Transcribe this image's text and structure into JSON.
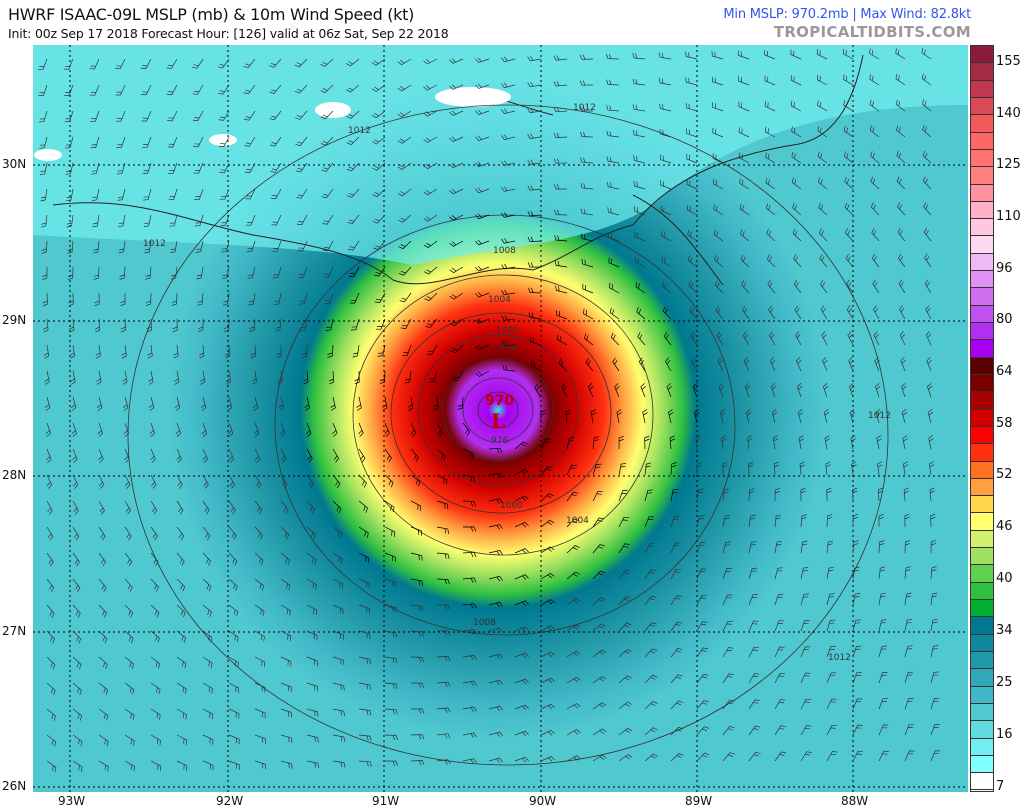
{
  "header": {
    "title": "HWRF ISAAC-09L MSLP (mb) & 10m Wind Speed (kt)",
    "subtitle": "Init: 00z Sep 17 2018   Forecast Hour: [126]   valid at 06z Sat, Sep 22 2018",
    "stats": "Min MSLP: 970.2mb | Max Wind: 82.8kt",
    "brand": "TROPICALTIDBITS.COM"
  },
  "map": {
    "lon_labels": [
      "93W",
      "92W",
      "91W",
      "90W",
      "89W",
      "88W"
    ],
    "lat_labels": [
      "30N",
      "29N",
      "28N",
      "27N",
      "26N"
    ],
    "isobar_labels": [
      "1012",
      "1012",
      "1012",
      "1012",
      "1012",
      "1008",
      "1008",
      "1004",
      "1004",
      "1000",
      "1000",
      "996",
      "976"
    ],
    "center_pressure": "970",
    "low_marker": "L"
  },
  "colorbar": {
    "labels": [
      "155",
      "140",
      "125",
      "110",
      "96",
      "80",
      "64",
      "58",
      "52",
      "46",
      "40",
      "34",
      "25",
      "16",
      "7"
    ],
    "colors": [
      "#8b1a3c",
      "#a52a44",
      "#c03850",
      "#d84a58",
      "#f05a5a",
      "#ff6666",
      "#ff7272",
      "#ff8080",
      "#ff90a0",
      "#ffb0c8",
      "#ffc8e0",
      "#ffd8f4",
      "#f0b8f4",
      "#e090f0",
      "#d070f0",
      "#c050f0",
      "#b030f0",
      "#a800f0",
      "#5a0000",
      "#7a0000",
      "#a80000",
      "#d00000",
      "#ff0000",
      "#ff3010",
      "#ff7020",
      "#ffa040",
      "#ffd850",
      "#ffff70",
      "#d0f070",
      "#a0e060",
      "#60d050",
      "#30c040",
      "#00b030",
      "#007890",
      "#1088a0",
      "#2098a8",
      "#30a8b8",
      "#40b8c8",
      "#50c8d0",
      "#60dce0",
      "#70eef0",
      "#80ffff",
      "#ffffff"
    ]
  }
}
